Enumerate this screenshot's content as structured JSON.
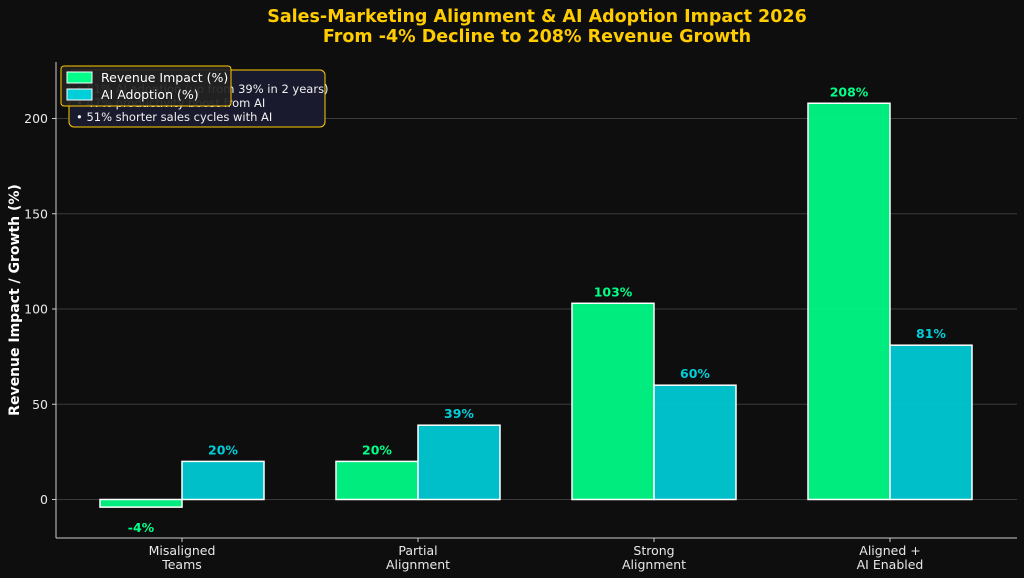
{
  "chart_data": {
    "type": "bar",
    "title": "Sales-Marketing Alignment & AI Adoption Impact 2026",
    "subtitle": "From -4% Decline to 208% Revenue Growth",
    "xlabel": "",
    "ylabel": "Revenue Impact / Growth (%)",
    "categories": [
      [
        "Misaligned",
        "Teams"
      ],
      [
        "Partial",
        "Alignment"
      ],
      [
        "Strong",
        "Alignment"
      ],
      [
        "Aligned +",
        "AI Enabled"
      ]
    ],
    "series": [
      {
        "name": "Revenue Impact (%)",
        "values": [
          -4,
          20,
          103,
          208
        ],
        "labels": [
          "-4%",
          "20%",
          "103%",
          "208%"
        ],
        "color": "#00ff88",
        "label_color": "#00ff88"
      },
      {
        "name": "AI Adoption (%)",
        "values": [
          20,
          39,
          60,
          81
        ],
        "labels": [
          "20%",
          "39%",
          "60%",
          "81%"
        ],
        "color": "#00ced9",
        "label_color": "#00ced9"
      }
    ],
    "ylim": [
      -20,
      230
    ],
    "yticks": [
      0,
      50,
      100,
      150,
      200
    ],
    "grid": true,
    "legend_position": "top-left",
    "annotation": {
      "lines": [
        "• 81% AI adoption (up from 39% in 2 years)",
        "• 47% productivity boost from AI",
        "• 51% shorter sales cycles with AI"
      ],
      "border_color": "#ffcc00",
      "background": "#1a1a2e"
    },
    "colors": {
      "background": "#0e0e0e",
      "grid": "#3a3a3a",
      "title": "#ffcc00",
      "bar_edge": "#ffffff"
    }
  }
}
